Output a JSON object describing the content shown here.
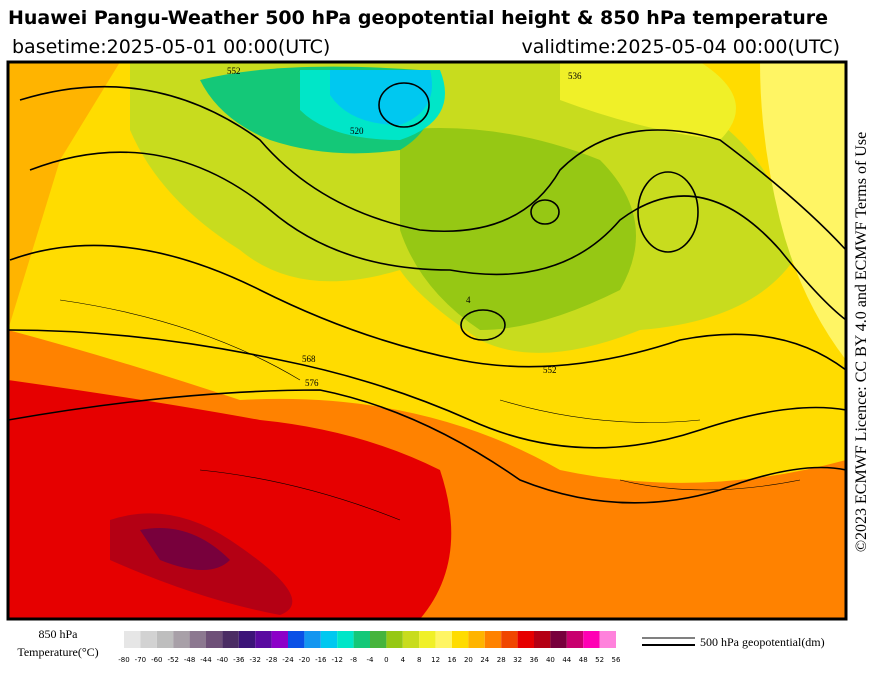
{
  "header": {
    "title": "Huawei Pangu-Weather 500 hPa geopotential height & 850 hPa temperature",
    "basetime": "basetime:2025-05-01 00:00(UTC)",
    "validtime": "validtime:2025-05-04 00:00(UTC)"
  },
  "licence": "©2023 ECMWF Licence: CC BY 4.0 and ECMWF Terms of Use",
  "map": {
    "contour_labels": [
      "552",
      "520",
      "568",
      "576",
      "552",
      "4",
      "536"
    ]
  },
  "legend": {
    "temperature_title": "850 hPa",
    "temperature_unit": "Temperature(°C)",
    "geopotential": "500 hPa geopotential(dm)"
  },
  "colorbar": {
    "ticks": [
      -80,
      -70,
      -60,
      -52,
      -48,
      -44,
      -40,
      -36,
      -32,
      -28,
      -24,
      -20,
      -16,
      -12,
      -8,
      -4,
      0,
      4,
      8,
      12,
      16,
      20,
      24,
      28,
      32,
      36,
      40,
      44,
      48,
      52,
      56
    ],
    "colors": [
      "#e6e6e6",
      "#d2d2d2",
      "#bebebe",
      "#a8a0a8",
      "#8c7890",
      "#6e5078",
      "#4b2d64",
      "#3c1478",
      "#5a0aa0",
      "#8c00c8",
      "#0a50e6",
      "#1496f0",
      "#00c8f0",
      "#00e6c8",
      "#14c878",
      "#46b43c",
      "#96c814",
      "#c8dc1e",
      "#f0f028",
      "#fff564",
      "#ffdc00",
      "#ffb400",
      "#ff8200",
      "#f04600",
      "#e60000",
      "#b40014",
      "#78003c",
      "#c8006e",
      "#ff00b4",
      "#ff82dc",
      "#e6c8e6"
    ]
  }
}
